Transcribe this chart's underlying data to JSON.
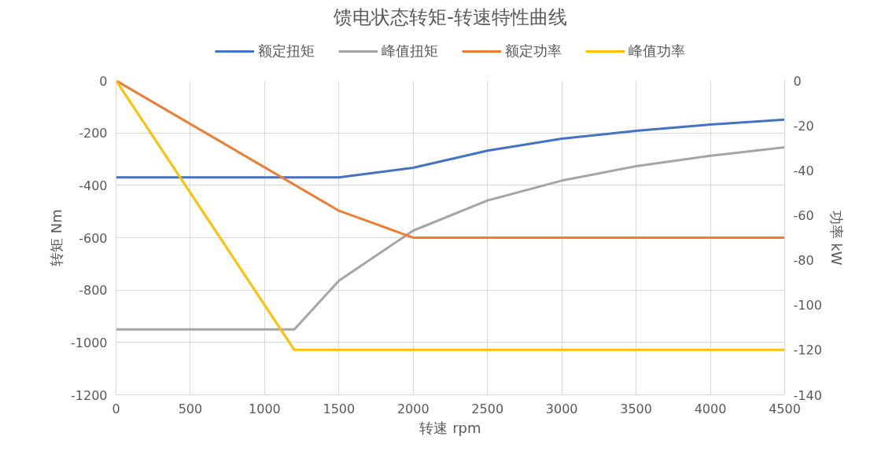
{
  "chart_data": {
    "type": "line",
    "title": "馈电状态转矩-转速特性曲线",
    "xlabel": "转速 rpm",
    "ylabel": "转矩 Nm",
    "y2label": "功率 kW",
    "xlim": [
      0,
      4500
    ],
    "xticks": [
      0,
      500,
      1000,
      1500,
      2000,
      2500,
      3000,
      3500,
      4000,
      4500
    ],
    "ylim": [
      -1200,
      0
    ],
    "yticks": [
      -1200,
      -1000,
      -800,
      -600,
      -400,
      -200,
      0
    ],
    "y2lim": [
      -140,
      0
    ],
    "y2ticks": [
      -140,
      -120,
      -100,
      -80,
      -60,
      -40,
      -20,
      0
    ],
    "grid": true,
    "legend": "top",
    "marker": "none",
    "line_style": "solid",
    "series": [
      {
        "name": "额定扭矩",
        "color": "#4472c4",
        "x": [
          0,
          1500,
          2000,
          2500,
          3000,
          3500,
          4000,
          4500
        ],
        "values": [
          -370,
          -370,
          -333,
          -268,
          -222,
          -192,
          -168,
          -149
        ]
      },
      {
        "name": "峰值扭矩",
        "color": "#a5a5a5",
        "x": [
          0,
          1200,
          1500,
          2000,
          2500,
          3000,
          3500,
          4000,
          4500
        ],
        "values": [
          -950,
          -950,
          -764,
          -573,
          -458,
          -382,
          -327,
          -287,
          -255
        ]
      },
      {
        "name": "额定功率",
        "color": "#ed7d31",
        "axis": "y2",
        "x": [
          0,
          1500,
          2000,
          2500,
          3000,
          3500,
          4000,
          4500
        ],
        "values": [
          0,
          -58,
          -70,
          -70,
          -70,
          -70,
          -70,
          -70
        ]
      },
      {
        "name": "峰值功率",
        "color": "#ffc000",
        "axis": "y2",
        "x": [
          0,
          1200,
          1500,
          2000,
          2500,
          3000,
          3500,
          4000,
          4500
        ],
        "values": [
          0,
          -120,
          -120,
          -120,
          -120,
          -120,
          -120,
          -120,
          -120
        ]
      }
    ]
  }
}
